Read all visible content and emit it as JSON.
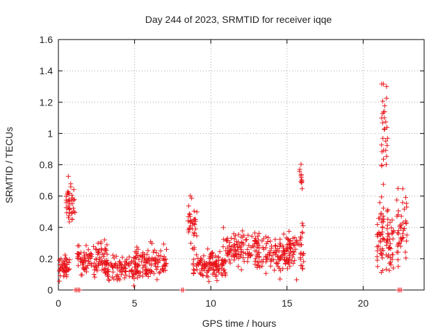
{
  "chart_data": {
    "type": "scatter",
    "title": "Day 244 of 2023, SRMTID for receiver iqqe",
    "xlabel": "GPS time / hours",
    "ylabel": "SRMTID / TECUs",
    "xlim": [
      0,
      24
    ],
    "ylim": [
      0,
      1.6
    ],
    "x_ticks": [
      0,
      5,
      10,
      15,
      20
    ],
    "x_tick_labels": [
      "0",
      "5",
      "10",
      "15",
      "20"
    ],
    "y_ticks": [
      0,
      0.2,
      0.4,
      0.6,
      0.8,
      1.0,
      1.2,
      1.4,
      1.6
    ],
    "y_tick_labels": [
      "0",
      "0.2",
      "0.4",
      "0.6",
      "0.8",
      "1",
      "1.2",
      "1.4",
      "1.6"
    ],
    "grid": true,
    "marker": "plus",
    "series": [
      {
        "name": "SRMTID",
        "color": "#e8141a",
        "segments": [
          {
            "x_start": 0.0,
            "x_end": 0.75,
            "y_center": 0.15,
            "y_spread": 0.12,
            "count": 45
          },
          {
            "x_start": 0.5,
            "x_end": 1.1,
            "y_center": 0.58,
            "y_spread": 0.22,
            "count": 40
          },
          {
            "x_start": 1.2,
            "x_end": 3.2,
            "y_center": 0.2,
            "y_spread": 0.15,
            "count": 110
          },
          {
            "x_start": 3.0,
            "x_end": 5.2,
            "y_center": 0.14,
            "y_spread": 0.14,
            "count": 110
          },
          {
            "x_start": 5.0,
            "x_end": 7.1,
            "y_center": 0.18,
            "y_spread": 0.15,
            "count": 110
          },
          {
            "x_start": 8.5,
            "x_end": 9.1,
            "y_center": 0.45,
            "y_spread": 0.25,
            "count": 35
          },
          {
            "x_start": 8.8,
            "x_end": 11.0,
            "y_center": 0.16,
            "y_spread": 0.13,
            "count": 120
          },
          {
            "x_start": 10.8,
            "x_end": 13.2,
            "y_center": 0.26,
            "y_spread": 0.16,
            "count": 120
          },
          {
            "x_start": 13.0,
            "x_end": 15.2,
            "y_center": 0.23,
            "y_spread": 0.17,
            "count": 110
          },
          {
            "x_start": 15.0,
            "x_end": 16.1,
            "y_center": 0.25,
            "y_spread": 0.2,
            "count": 60
          },
          {
            "x_start": 15.8,
            "x_end": 16.0,
            "y_center": 0.72,
            "y_spread": 0.15,
            "count": 12
          },
          {
            "x_start": 20.9,
            "x_end": 21.4,
            "y_center": 0.35,
            "y_spread": 0.35,
            "count": 45
          },
          {
            "x_start": 21.2,
            "x_end": 21.6,
            "y_center": 1.0,
            "y_spread": 0.5,
            "count": 30
          },
          {
            "x_start": 21.5,
            "x_end": 22.0,
            "y_center": 0.3,
            "y_spread": 0.3,
            "count": 40
          },
          {
            "x_start": 22.2,
            "x_end": 22.9,
            "y_center": 0.4,
            "y_spread": 0.38,
            "count": 45
          }
        ],
        "zero_points_x": [
          1.1,
          1.2,
          1.3,
          1.4,
          8.1,
          8.2,
          22.3,
          22.4,
          22.5
        ]
      }
    ]
  }
}
